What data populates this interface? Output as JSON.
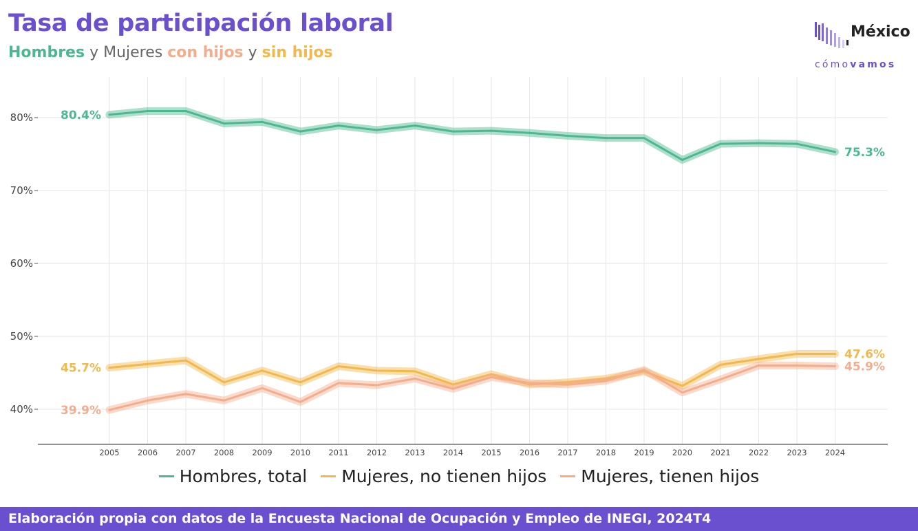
{
  "header": {
    "title": "Tasa de participación laboral",
    "subtitle_parts": [
      {
        "text": "Hombres",
        "color": "#4cb890",
        "bold": true
      },
      {
        "text": " y ",
        "color": "#666666",
        "bold": false
      },
      {
        "text": "Mujeres ",
        "color": "#666666",
        "bold": false
      },
      {
        "text": "con hijos",
        "color": "#f3ad8c",
        "bold": true
      },
      {
        "text": " y ",
        "color": "#666666",
        "bold": false
      },
      {
        "text": "sin hijos",
        "color": "#f2b84b",
        "bold": true
      }
    ]
  },
  "logo": {
    "word": "México",
    "sub_light": "cómo",
    "sub_bold": "vamos",
    "icon": "bar-stripes-icon"
  },
  "footer": {
    "text": "Elaboración propia con datos de la Encuesta Nacional de Ocupación y Empleo de INEGI, 2024T4"
  },
  "chart_data": {
    "type": "line",
    "title": "Tasa de participación laboral",
    "x": [
      "2005",
      "2006",
      "2007",
      "2008",
      "2009",
      "2010",
      "2011",
      "2012",
      "2013",
      "2014",
      "2015",
      "2016",
      "2017",
      "2018",
      "2019",
      "2020",
      "2021",
      "2022",
      "2023",
      "2024"
    ],
    "yticks": [
      "40%",
      "50%",
      "60%",
      "70%",
      "80%"
    ],
    "ylim": [
      35,
      85
    ],
    "grid": true,
    "legend_position": "bottom",
    "series": [
      {
        "name": "Hombres, total",
        "color": "#4cb890",
        "values": [
          80.4,
          80.9,
          80.9,
          79.2,
          79.4,
          78.1,
          78.9,
          78.3,
          78.9,
          78.1,
          78.2,
          77.9,
          77.5,
          77.2,
          77.2,
          74.2,
          76.4,
          76.5,
          76.4,
          75.3
        ],
        "start_label": "80.4%",
        "end_label": "75.3%"
      },
      {
        "name": "Mujeres, no tienen hijos",
        "color": "#f2b84b",
        "values": [
          45.7,
          46.2,
          46.7,
          43.7,
          45.3,
          43.7,
          45.9,
          45.3,
          45.2,
          43.4,
          44.8,
          43.4,
          43.7,
          44.2,
          45.2,
          43.2,
          46.1,
          46.9,
          47.6,
          47.6
        ],
        "start_label": "45.7%",
        "end_label": "47.6%"
      },
      {
        "name": "Mujeres, tienen hijos",
        "color": "#f3ad8c",
        "values": [
          39.9,
          41.2,
          42.1,
          41.2,
          42.9,
          41.0,
          43.6,
          43.3,
          44.2,
          42.8,
          44.4,
          43.6,
          43.4,
          43.9,
          45.4,
          42.3,
          44.1,
          46.0,
          46.0,
          45.9
        ],
        "start_label": "39.9%",
        "end_label": "45.9%"
      }
    ]
  }
}
